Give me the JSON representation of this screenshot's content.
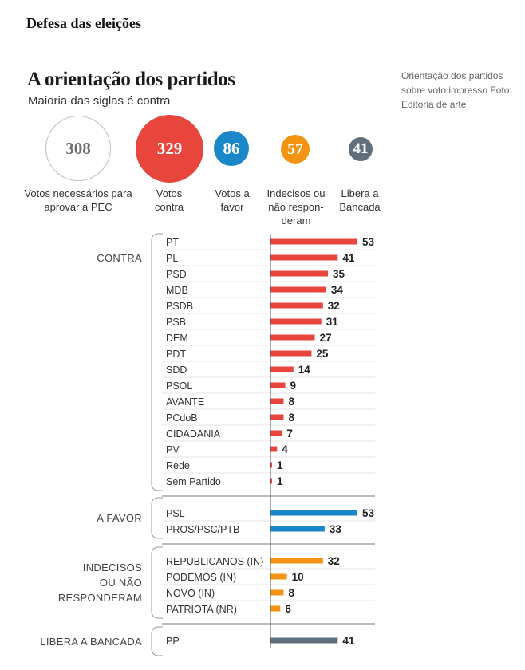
{
  "header": {
    "section_title": "Defesa das eleições",
    "title": "A orientação dos partidos",
    "subtitle": "Maioria das siglas é contra",
    "caption": "Orientação dos partidos sobre voto impresso Foto: Editoria de arte"
  },
  "summary": [
    {
      "value": "308",
      "label": "Votos necessários para aprovar a PEC",
      "color": "#ffffff",
      "text_color": "#6f6f6f",
      "outlined": true
    },
    {
      "value": "329",
      "label": "Votos contra",
      "color": "#e8453c",
      "text_color": "#ffffff"
    },
    {
      "value": "86",
      "label": "Votos a favor",
      "color": "#1a87c9",
      "text_color": "#ffffff"
    },
    {
      "value": "57",
      "label": "Indecisos ou não respon-deram",
      "color": "#f39314",
      "text_color": "#ffffff"
    },
    {
      "value": "41",
      "label": "Libera a Bancada",
      "color": "#5f707c",
      "text_color": "#ffffff"
    }
  ],
  "chart_data": {
    "type": "bar",
    "orientation": "horizontal",
    "title": "A orientação dos partidos",
    "subtitle": "Maioria das siglas é contra",
    "xlabel": "",
    "ylabel": "",
    "xlim": [
      0,
      53
    ],
    "grid": false,
    "groups": [
      {
        "name": "CONTRA",
        "label_lines": [
          "CONTRA"
        ],
        "color": "#e8453c",
        "categories": [
          "PT",
          "PL",
          "PSD",
          "MDB",
          "PSDB",
          "PSB",
          "DEM",
          "PDT",
          "SDD",
          "PSOL",
          "AVANTE",
          "PCdoB",
          "CIDADANIA",
          "PV",
          "Rede",
          "Sem Partido"
        ],
        "values": [
          53,
          41,
          35,
          34,
          32,
          31,
          27,
          25,
          14,
          9,
          8,
          8,
          7,
          4,
          1,
          1
        ]
      },
      {
        "name": "A FAVOR",
        "label_lines": [
          "A FAVOR"
        ],
        "color": "#1a87c9",
        "categories": [
          "PSL",
          "PROS/PSC/PTB"
        ],
        "values": [
          53,
          33
        ]
      },
      {
        "name": "INDECISOS OU NÃO RESPONDERAM",
        "label_lines": [
          "INDECISOS",
          "OU NÃO",
          "RESPONDERAM"
        ],
        "color": "#f39314",
        "categories": [
          "REPUBLICANOS (IN)",
          "PODEMOS (IN)",
          "NOVO (IN)",
          "PATRIOTA (NR)"
        ],
        "values": [
          32,
          10,
          8,
          6
        ]
      },
      {
        "name": "LIBERA A BANCADA",
        "label_lines": [
          "LIBERA A BANCADA"
        ],
        "color": "#5f707c",
        "categories": [
          "PP"
        ],
        "values": [
          41
        ]
      }
    ]
  }
}
